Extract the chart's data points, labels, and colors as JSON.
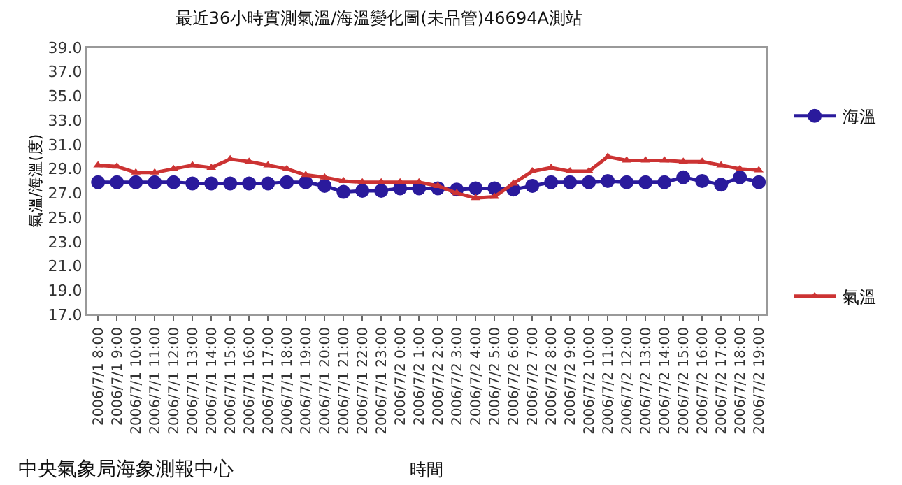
{
  "chart_data": {
    "type": "line",
    "title": "最近36小時實測氣溫/海溫變化圖(未品管)46694A測站",
    "xlabel": "時間",
    "ylabel": "氣溫/海溫(度)",
    "categories": [
      "2006/7/1 8:00",
      "2006/7/1 9:00",
      "2006/7/1 10:00",
      "2006/7/1 11:00",
      "2006/7/1 12:00",
      "2006/7/1 13:00",
      "2006/7/1 14:00",
      "2006/7/1 15:00",
      "2006/7/1 16:00",
      "2006/7/1 17:00",
      "2006/7/1 18:00",
      "2006/7/1 19:00",
      "2006/7/1 20:00",
      "2006/7/1 21:00",
      "2006/7/1 22:00",
      "2006/7/1 23:00",
      "2006/7/2 0:00",
      "2006/7/2 1:00",
      "2006/7/2 2:00",
      "2006/7/2 3:00",
      "2006/7/2 4:00",
      "2006/7/2 5:00",
      "2006/7/2 6:00",
      "2006/7/2 7:00",
      "2006/7/2 8:00",
      "2006/7/2 9:00",
      "2006/7/2 10:00",
      "2006/7/2 11:00",
      "2006/7/2 12:00",
      "2006/7/2 13:00",
      "2006/7/2 14:00",
      "2006/7/2 15:00",
      "2006/7/2 16:00",
      "2006/7/2 17:00",
      "2006/7/2 18:00",
      "2006/7/2 19:00"
    ],
    "series": [
      {
        "name": "海溫",
        "color": "#2a1a9c",
        "marker": "circle",
        "values": [
          27.9,
          27.9,
          27.9,
          27.9,
          27.9,
          27.8,
          27.8,
          27.8,
          27.8,
          27.8,
          27.9,
          27.9,
          27.6,
          27.1,
          27.2,
          27.2,
          27.4,
          27.4,
          27.4,
          27.3,
          27.4,
          27.4,
          27.3,
          27.6,
          27.9,
          27.9,
          27.9,
          28.0,
          27.9,
          27.9,
          27.9,
          28.3,
          28.0,
          27.7,
          28.3,
          27.9
        ]
      },
      {
        "name": "氣溫",
        "color": "#cc3333",
        "marker": "triangle",
        "values": [
          29.3,
          29.2,
          28.7,
          28.7,
          29.0,
          29.3,
          29.1,
          29.8,
          29.6,
          29.3,
          29.0,
          28.5,
          28.3,
          28.0,
          27.9,
          27.9,
          27.9,
          27.9,
          27.6,
          27.0,
          26.6,
          26.7,
          27.8,
          28.8,
          29.1,
          28.8,
          28.8,
          30.0,
          29.7,
          29.7,
          29.7,
          29.6,
          29.6,
          29.3,
          29.0,
          28.9
        ]
      }
    ],
    "ylim": [
      17.0,
      39.0
    ],
    "yticks": [
      {
        "value": 17,
        "label": "17.0"
      },
      {
        "value": 19,
        "label": "19.0"
      },
      {
        "value": 21,
        "label": "21.0"
      },
      {
        "value": 23,
        "label": "23.0"
      },
      {
        "value": 25,
        "label": "25.0"
      },
      {
        "value": 27,
        "label": "27.0"
      },
      {
        "value": 29,
        "label": "29.0"
      },
      {
        "value": 31,
        "label": "31.0"
      },
      {
        "value": 33,
        "label": "33.0"
      },
      {
        "value": 35,
        "label": "35.0"
      },
      {
        "value": 37,
        "label": "37.0"
      },
      {
        "value": 39,
        "label": "39.0"
      }
    ],
    "legend": "right",
    "line_style": "solid",
    "annotations": [
      "中央氣象局海象測報中心"
    ]
  }
}
